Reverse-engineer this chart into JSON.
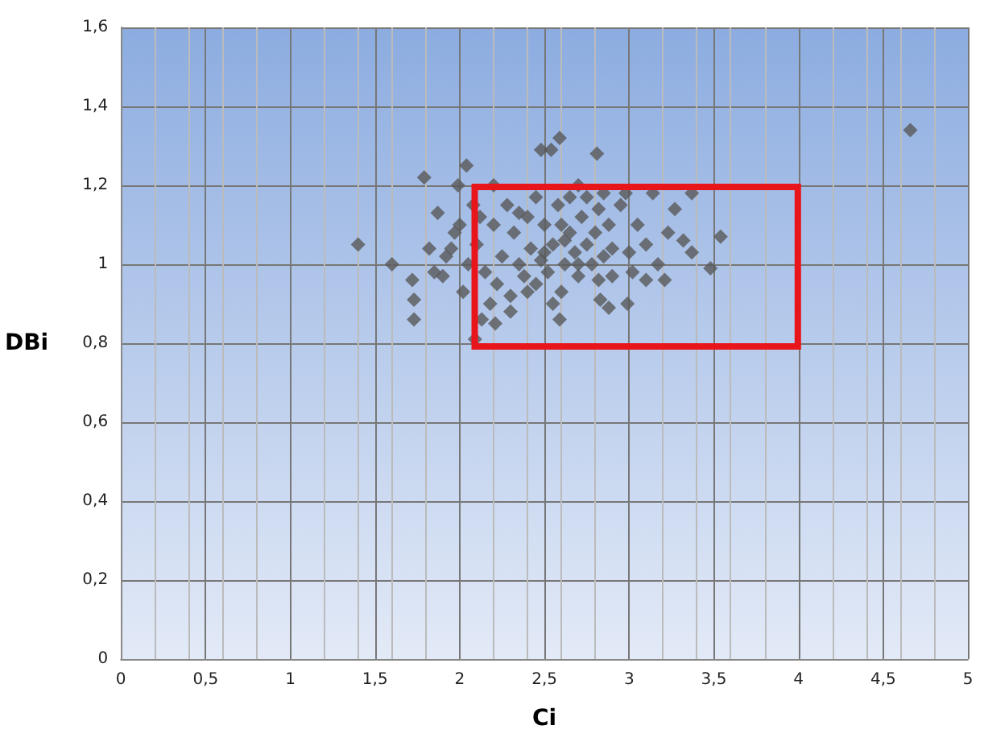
{
  "chart_data": {
    "type": "scatter",
    "xlabel": "Ci",
    "ylabel": "DBi",
    "marker": "diamond",
    "grid": true,
    "xlim": [
      0,
      5
    ],
    "xticks": [
      0,
      {
        "value": 0.5,
        "label": "0,5"
      },
      1,
      {
        "value": 1.5,
        "label": "1,5"
      },
      2,
      {
        "value": 2.5,
        "label": "2,5"
      },
      3,
      {
        "value": 3.5,
        "label": "3,5"
      },
      4,
      {
        "value": 4.5,
        "label": "4,5"
      },
      5
    ],
    "ylim": [
      0,
      1.6
    ],
    "yticks": [
      0,
      {
        "value": 0.2,
        "label": "0,2"
      },
      {
        "value": 0.4,
        "label": "0,4"
      },
      {
        "value": 0.6,
        "label": "0,6"
      },
      {
        "value": 0.8,
        "label": "0,8"
      },
      1,
      {
        "value": 1.2,
        "label": "1,2"
      },
      {
        "value": 1.4,
        "label": "1,4"
      },
      {
        "value": 1.6,
        "label": "1,6"
      }
    ],
    "series": [
      {
        "color": "#595959",
        "x": [
          4.66,
          1.4,
          1.6,
          1.72,
          1.73,
          1.73,
          1.79,
          1.87,
          2.04,
          1.99,
          1.92,
          1.97,
          2.09,
          2.13,
          2.21,
          2.2,
          2.48,
          2.54,
          2.59,
          2.81,
          2.82,
          2.7,
          2.62,
          2.59,
          2.88,
          2.99,
          2.83,
          3.14,
          3.23,
          3.32,
          3.37,
          3.48,
          3.54,
          3.37,
          3.27,
          3.17,
          3.21,
          3.1,
          2.05,
          2.1,
          2.15,
          2.2,
          2.22,
          2.25,
          2.28,
          2.3,
          2.32,
          2.35,
          2.38,
          2.4,
          2.42,
          2.45,
          2.48,
          2.5,
          2.52,
          2.55,
          2.58,
          2.6,
          2.62,
          2.65,
          2.68,
          2.7,
          2.72,
          2.75,
          2.78,
          2.8,
          2.82,
          2.85,
          2.88,
          2.9,
          2.95,
          3.0,
          3.05,
          3.1,
          3.02,
          2.98,
          1.9,
          1.95,
          2.0,
          2.02,
          2.08,
          2.12,
          2.18,
          2.3,
          2.45,
          2.55,
          2.65,
          2.75,
          2.85,
          1.85,
          1.82,
          2.4,
          2.6,
          2.35,
          2.5,
          2.7,
          2.9
        ],
        "values": [
          1.34,
          1.05,
          1.0,
          0.96,
          0.91,
          0.86,
          1.22,
          1.13,
          1.25,
          1.2,
          1.02,
          1.08,
          0.81,
          0.86,
          0.85,
          1.2,
          1.29,
          1.29,
          1.32,
          1.28,
          1.14,
          1.2,
          1.06,
          0.86,
          0.89,
          0.9,
          0.91,
          1.18,
          1.08,
          1.06,
          1.18,
          0.99,
          1.07,
          1.03,
          1.14,
          1.0,
          0.96,
          0.96,
          1.0,
          1.05,
          0.98,
          1.1,
          0.95,
          1.02,
          1.15,
          0.92,
          1.08,
          1.0,
          0.97,
          1.12,
          1.04,
          0.95,
          1.01,
          1.1,
          0.98,
          1.05,
          1.15,
          0.93,
          1.0,
          1.08,
          1.03,
          0.97,
          1.12,
          1.05,
          1.0,
          1.08,
          0.96,
          1.02,
          1.1,
          1.04,
          1.15,
          1.03,
          1.1,
          1.05,
          0.98,
          1.18,
          0.97,
          1.04,
          1.1,
          0.93,
          1.15,
          1.12,
          0.9,
          0.88,
          1.17,
          0.9,
          1.17,
          1.17,
          1.18,
          0.98,
          1.04,
          0.93,
          1.1,
          1.13,
          1.03,
          1.0,
          0.97
        ]
      }
    ]
  }
}
